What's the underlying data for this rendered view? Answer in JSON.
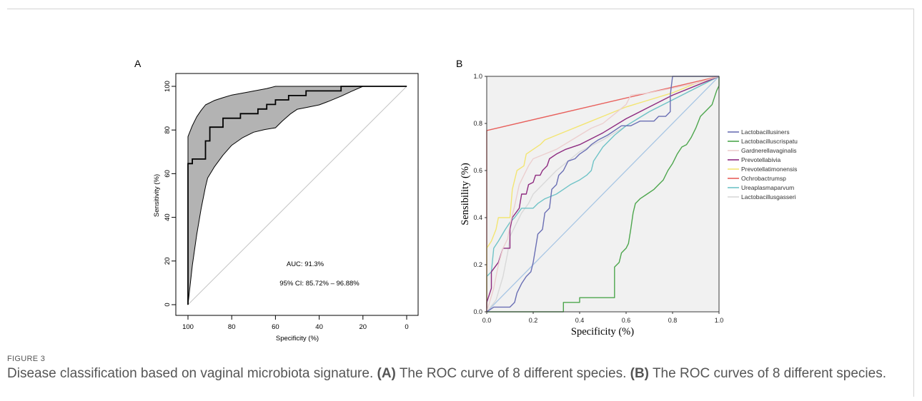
{
  "figure": {
    "label": "FIGURE 3",
    "caption": {
      "lead": "Disease classification based on vaginal microbiota signature. ",
      "a_ref": "(A)",
      "a_text": " The ROC curve of 8 different species. ",
      "b_ref": "(B)",
      "b_text": " The ROC curves of 8 different species."
    }
  },
  "chart_data": [
    {
      "panel_label": "A",
      "type": "line",
      "xlabel": "Specificity (%)",
      "ylabel": "Sensitivity (%)",
      "xlim": [
        100,
        0
      ],
      "ylim": [
        0,
        100
      ],
      "x_ticks": [
        "100",
        "80",
        "60",
        "40",
        "20",
        "0"
      ],
      "y_ticks": [
        "0",
        "20",
        "40",
        "60",
        "80",
        "100"
      ],
      "grid": false,
      "colors": {
        "roc": "#000000",
        "ci_band_fill": "#b3b3b3",
        "ci_band_edge": "#000000",
        "reference": "#c4c4c4"
      },
      "roc_curve": [
        [
          100,
          0
        ],
        [
          100,
          64.6
        ],
        [
          98,
          64.6
        ],
        [
          98,
          66.7
        ],
        [
          92,
          66.7
        ],
        [
          92,
          75.0
        ],
        [
          90,
          75.0
        ],
        [
          90,
          81.3
        ],
        [
          84,
          81.3
        ],
        [
          84,
          85.4
        ],
        [
          76,
          85.4
        ],
        [
          76,
          87.5
        ],
        [
          68,
          87.5
        ],
        [
          68,
          89.6
        ],
        [
          64,
          89.6
        ],
        [
          64,
          91.7
        ],
        [
          60,
          91.7
        ],
        [
          60,
          93.8
        ],
        [
          54,
          93.8
        ],
        [
          54,
          95.8
        ],
        [
          46,
          95.8
        ],
        [
          46,
          97.9
        ],
        [
          30,
          97.9
        ],
        [
          30,
          100
        ],
        [
          0,
          100
        ]
      ],
      "ci_band": {
        "upper": [
          [
            100,
            77
          ],
          [
            98,
            82
          ],
          [
            96,
            86
          ],
          [
            94,
            89
          ],
          [
            92,
            91.5
          ],
          [
            88,
            93.5
          ],
          [
            84,
            94.8
          ],
          [
            80,
            96
          ],
          [
            72,
            97.5
          ],
          [
            64,
            99
          ],
          [
            60,
            100
          ],
          [
            0,
            100
          ]
        ],
        "lower": [
          [
            100,
            0
          ],
          [
            98,
            18
          ],
          [
            96,
            32
          ],
          [
            94,
            44
          ],
          [
            92,
            54
          ],
          [
            91,
            58
          ],
          [
            88,
            63
          ],
          [
            84,
            68.5
          ],
          [
            80,
            73
          ],
          [
            75,
            76.5
          ],
          [
            70,
            79
          ],
          [
            65,
            80.2
          ],
          [
            60,
            81
          ],
          [
            57,
            84
          ],
          [
            53,
            87.5
          ],
          [
            50,
            89.5
          ],
          [
            45,
            90.5
          ],
          [
            40,
            91.5
          ],
          [
            36,
            93
          ],
          [
            30,
            95.5
          ],
          [
            25,
            97.8
          ],
          [
            20,
            100
          ],
          [
            0,
            100
          ]
        ]
      },
      "reference_line": [
        [
          100,
          0
        ],
        [
          0,
          100
        ]
      ],
      "annotations": [
        "AUC: 91.3%",
        "95% CI: 85.72% – 96.88%"
      ]
    },
    {
      "panel_label": "B",
      "type": "line",
      "xlabel": "Specificity (%)",
      "ylabel": "Sensibility (%)",
      "xlim": [
        0,
        1
      ],
      "ylim": [
        0,
        1
      ],
      "x_ticks": [
        "0.0",
        "0.2",
        "0.4",
        "0.6",
        "0.8",
        "1.0"
      ],
      "y_ticks": [
        "0.0",
        "0.2",
        "0.4",
        "0.6",
        "0.8",
        "1.0"
      ],
      "grid": false,
      "background": "#f1f1f1",
      "legend_position": "right",
      "reference_line": {
        "points": [
          [
            0,
            0
          ],
          [
            1,
            1
          ]
        ],
        "color": "#a8c6e4"
      },
      "series": [
        {
          "name": "Lactobacillusiners",
          "color": "#6a6fb4",
          "points": [
            [
              0,
              0
            ],
            [
              0.03,
              0.02
            ],
            [
              0.1,
              0.02
            ],
            [
              0.12,
              0.04
            ],
            [
              0.13,
              0.08
            ],
            [
              0.15,
              0.12
            ],
            [
              0.17,
              0.15
            ],
            [
              0.19,
              0.17
            ],
            [
              0.2,
              0.21
            ],
            [
              0.21,
              0.27
            ],
            [
              0.22,
              0.33
            ],
            [
              0.24,
              0.35
            ],
            [
              0.25,
              0.42
            ],
            [
              0.27,
              0.44
            ],
            [
              0.28,
              0.52
            ],
            [
              0.3,
              0.54
            ],
            [
              0.31,
              0.58
            ],
            [
              0.33,
              0.6
            ],
            [
              0.35,
              0.64
            ],
            [
              0.38,
              0.65
            ],
            [
              0.4,
              0.67
            ],
            [
              0.43,
              0.69
            ],
            [
              0.45,
              0.71
            ],
            [
              0.48,
              0.73
            ],
            [
              0.52,
              0.75
            ],
            [
              0.55,
              0.77
            ],
            [
              0.58,
              0.79
            ],
            [
              0.62,
              0.79
            ],
            [
              0.66,
              0.81
            ],
            [
              0.72,
              0.81
            ],
            [
              0.74,
              0.83
            ],
            [
              0.77,
              0.83
            ],
            [
              0.79,
              0.85
            ],
            [
              0.79,
              0.92
            ],
            [
              0.8,
              1.0
            ],
            [
              1.0,
              1.0
            ]
          ]
        },
        {
          "name": "Lactobacilluscrispatu",
          "color": "#4da64d",
          "points": [
            [
              0,
              0
            ],
            [
              0.33,
              0
            ],
            [
              0.33,
              0.04
            ],
            [
              0.4,
              0.04
            ],
            [
              0.4,
              0.06
            ],
            [
              0.55,
              0.06
            ],
            [
              0.55,
              0.19
            ],
            [
              0.57,
              0.21
            ],
            [
              0.58,
              0.25
            ],
            [
              0.6,
              0.27
            ],
            [
              0.61,
              0.29
            ],
            [
              0.62,
              0.35
            ],
            [
              0.63,
              0.42
            ],
            [
              0.64,
              0.46
            ],
            [
              0.66,
              0.48
            ],
            [
              0.69,
              0.5
            ],
            [
              0.72,
              0.52
            ],
            [
              0.74,
              0.54
            ],
            [
              0.76,
              0.56
            ],
            [
              0.78,
              0.6
            ],
            [
              0.8,
              0.63
            ],
            [
              0.82,
              0.67
            ],
            [
              0.84,
              0.7
            ],
            [
              0.86,
              0.71
            ],
            [
              0.88,
              0.74
            ],
            [
              0.9,
              0.78
            ],
            [
              0.92,
              0.83
            ],
            [
              0.95,
              0.86
            ],
            [
              0.97,
              0.88
            ],
            [
              0.98,
              0.91
            ],
            [
              0.99,
              0.94
            ],
            [
              1.0,
              0.96
            ],
            [
              1.0,
              1.0
            ]
          ]
        },
        {
          "name": "Gardnerellavaginalis",
          "color": "#eccfcf",
          "points": [
            [
              0,
              0
            ],
            [
              0.03,
              0.1
            ],
            [
              0.05,
              0.2
            ],
            [
              0.07,
              0.27
            ],
            [
              0.09,
              0.31
            ],
            [
              0.1,
              0.37
            ],
            [
              0.12,
              0.45
            ],
            [
              0.14,
              0.54
            ],
            [
              0.16,
              0.58
            ],
            [
              0.18,
              0.62
            ],
            [
              0.2,
              0.65
            ],
            [
              0.25,
              0.67
            ],
            [
              0.3,
              0.69
            ],
            [
              0.35,
              0.72
            ],
            [
              0.4,
              0.75
            ],
            [
              0.45,
              0.78
            ],
            [
              0.5,
              0.8
            ],
            [
              0.55,
              0.84
            ],
            [
              0.6,
              0.88
            ],
            [
              0.62,
              0.92
            ],
            [
              0.7,
              0.93
            ],
            [
              0.8,
              0.95
            ],
            [
              0.9,
              0.97
            ],
            [
              1,
              1
            ]
          ]
        },
        {
          "name": "Prevotellabivia",
          "color": "#8e2b80",
          "points": [
            [
              0,
              0
            ],
            [
              0,
              0.04
            ],
            [
              0.02,
              0.1
            ],
            [
              0.02,
              0.17
            ],
            [
              0.05,
              0.21
            ],
            [
              0.07,
              0.27
            ],
            [
              0.1,
              0.27
            ],
            [
              0.1,
              0.35
            ],
            [
              0.11,
              0.4
            ],
            [
              0.14,
              0.44
            ],
            [
              0.15,
              0.5
            ],
            [
              0.17,
              0.5
            ],
            [
              0.18,
              0.54
            ],
            [
              0.2,
              0.55
            ],
            [
              0.21,
              0.58
            ],
            [
              0.23,
              0.58
            ],
            [
              0.24,
              0.6
            ],
            [
              0.26,
              0.62
            ],
            [
              0.27,
              0.65
            ],
            [
              0.3,
              0.67
            ],
            [
              0.34,
              0.69
            ],
            [
              0.4,
              0.71
            ],
            [
              0.5,
              0.76
            ],
            [
              0.6,
              0.82
            ],
            [
              0.7,
              0.87
            ],
            [
              0.8,
              0.92
            ],
            [
              0.9,
              0.96
            ],
            [
              1,
              1
            ]
          ]
        },
        {
          "name": "Prevotellatimonensis",
          "color": "#f3e572",
          "points": [
            [
              0,
              0
            ],
            [
              0,
              0.27
            ],
            [
              0.02,
              0.3
            ],
            [
              0.04,
              0.35
            ],
            [
              0.05,
              0.4
            ],
            [
              0.1,
              0.4
            ],
            [
              0.11,
              0.52
            ],
            [
              0.13,
              0.6
            ],
            [
              0.16,
              0.62
            ],
            [
              0.17,
              0.67
            ],
            [
              0.2,
              0.69
            ],
            [
              0.23,
              0.71
            ],
            [
              0.25,
              0.73
            ],
            [
              0.3,
              0.75
            ],
            [
              0.35,
              0.77
            ],
            [
              0.4,
              0.79
            ],
            [
              0.45,
              0.81
            ],
            [
              0.5,
              0.83
            ],
            [
              0.55,
              0.85
            ],
            [
              0.6,
              0.87
            ],
            [
              0.7,
              0.9
            ],
            [
              0.8,
              0.93
            ],
            [
              0.9,
              0.97
            ],
            [
              1,
              1
            ]
          ]
        },
        {
          "name": "Ochrobactrumsp",
          "color": "#e8605c",
          "points": [
            [
              0,
              0
            ],
            [
              0,
              0.77
            ],
            [
              1,
              1
            ]
          ]
        },
        {
          "name": "Ureaplasmaparvum",
          "color": "#6fc3c7",
          "points": [
            [
              0,
              0
            ],
            [
              0,
              0.15
            ],
            [
              0.02,
              0.17
            ],
            [
              0.03,
              0.27
            ],
            [
              0.05,
              0.3
            ],
            [
              0.08,
              0.35
            ],
            [
              0.1,
              0.38
            ],
            [
              0.12,
              0.4
            ],
            [
              0.15,
              0.44
            ],
            [
              0.2,
              0.44
            ],
            [
              0.22,
              0.46
            ],
            [
              0.25,
              0.48
            ],
            [
              0.3,
              0.5
            ],
            [
              0.33,
              0.52
            ],
            [
              0.36,
              0.54
            ],
            [
              0.4,
              0.56
            ],
            [
              0.43,
              0.58
            ],
            [
              0.45,
              0.6
            ],
            [
              0.46,
              0.64
            ],
            [
              0.48,
              0.67
            ],
            [
              0.5,
              0.7
            ],
            [
              0.55,
              0.75
            ],
            [
              0.6,
              0.79
            ],
            [
              0.7,
              0.85
            ],
            [
              0.8,
              0.9
            ],
            [
              0.9,
              0.95
            ],
            [
              1,
              1
            ]
          ]
        },
        {
          "name": "Lactobacillusgasseri",
          "color": "#d9d9d9",
          "points": [
            [
              0,
              0
            ],
            [
              0.04,
              0.05
            ],
            [
              0.07,
              0.15
            ],
            [
              0.09,
              0.25
            ],
            [
              0.1,
              0.32
            ],
            [
              0.12,
              0.36
            ],
            [
              0.15,
              0.42
            ],
            [
              0.18,
              0.46
            ],
            [
              0.2,
              0.5
            ],
            [
              0.25,
              0.55
            ],
            [
              0.3,
              0.6
            ],
            [
              0.35,
              0.64
            ],
            [
              0.4,
              0.68
            ],
            [
              0.5,
              0.73
            ],
            [
              0.6,
              0.79
            ],
            [
              0.7,
              0.85
            ],
            [
              0.8,
              0.9
            ],
            [
              0.9,
              0.95
            ],
            [
              1,
              1
            ]
          ]
        }
      ]
    }
  ]
}
